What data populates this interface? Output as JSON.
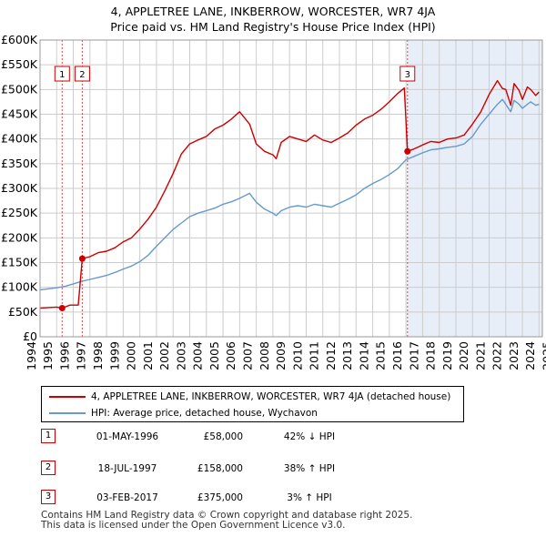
{
  "title_line1": "4, APPLETREE LANE, INKBERROW, WORCESTER, WR7 4JA",
  "title_line2": "Price paid vs. HM Land Registry's House Price Index (HPI)",
  "colors": {
    "price": "#cc0000",
    "hpi": "#6699cc",
    "shade": "#e8eef8",
    "grid": "#cccccc",
    "marker_line": "#cc0000"
  },
  "chart_data": {
    "type": "line",
    "title": "4, APPLETREE LANE, INKBERROW, WORCESTER, WR7 4JA — Price paid vs. HM Land Registry's House Price Index (HPI)",
    "xlabel": "",
    "ylabel": "",
    "xlim": [
      1995.0,
      2025.2
    ],
    "ylim": [
      0,
      600000
    ],
    "y_ticks": [
      {
        "value": 0,
        "label": "£0"
      },
      {
        "value": 50000,
        "label": "£50K"
      },
      {
        "value": 100000,
        "label": "£100K"
      },
      {
        "value": 150000,
        "label": "£150K"
      },
      {
        "value": 200000,
        "label": "£200K"
      },
      {
        "value": 250000,
        "label": "£250K"
      },
      {
        "value": 300000,
        "label": "£300K"
      },
      {
        "value": 350000,
        "label": "£350K"
      },
      {
        "value": 400000,
        "label": "£400K"
      },
      {
        "value": 450000,
        "label": "£450K"
      },
      {
        "value": 500000,
        "label": "£500K"
      },
      {
        "value": 550000,
        "label": "£550K"
      },
      {
        "value": 600000,
        "label": "£600K"
      }
    ],
    "x_ticks": [
      "1994",
      "1995",
      "1996",
      "1997",
      "1998",
      "1999",
      "2000",
      "2001",
      "2002",
      "2003",
      "2004",
      "2005",
      "2006",
      "2007",
      "2008",
      "2009",
      "2010",
      "2011",
      "2012",
      "2013",
      "2014",
      "2015",
      "2016",
      "2017",
      "2018",
      "2019",
      "2020",
      "2021",
      "2022",
      "2023",
      "2024",
      "2025"
    ],
    "series": [
      {
        "name": "4, APPLETREE LANE, INKBERROW, WORCESTER, WR7 4JA (detached house)",
        "color": "#cc0000",
        "x": [
          1995.0,
          1995.5,
          1996.0,
          1996.33,
          1996.8,
          1997.3,
          1997.54,
          1998.0,
          1998.5,
          1999.0,
          1999.5,
          2000.0,
          2000.5,
          2001.0,
          2001.5,
          2002.0,
          2002.5,
          2003.0,
          2003.5,
          2004.0,
          2004.5,
          2005.0,
          2005.5,
          2006.0,
          2006.5,
          2007.0,
          2007.6,
          2008.0,
          2008.5,
          2009.0,
          2009.2,
          2009.5,
          2010.0,
          2010.5,
          2011.0,
          2011.5,
          2012.0,
          2012.5,
          2013.0,
          2013.5,
          2014.0,
          2014.5,
          2015.0,
          2015.5,
          2016.0,
          2016.5,
          2016.9,
          2017.09,
          2017.5,
          2018.0,
          2018.5,
          2019.0,
          2019.5,
          2020.0,
          2020.5,
          2021.0,
          2021.5,
          2022.0,
          2022.5,
          2022.8,
          2023.0,
          2023.3,
          2023.5,
          2023.8,
          2024.0,
          2024.3,
          2024.5,
          2024.8,
          2025.0
        ],
        "values": [
          58000,
          59000,
          60000,
          58000,
          64000,
          64000,
          158000,
          162000,
          170000,
          173000,
          180000,
          192000,
          200000,
          218000,
          238000,
          262000,
          295000,
          330000,
          370000,
          390000,
          398000,
          405000,
          420000,
          428000,
          440000,
          455000,
          430000,
          390000,
          375000,
          368000,
          360000,
          393000,
          405000,
          400000,
          395000,
          408000,
          398000,
          393000,
          402000,
          412000,
          428000,
          440000,
          448000,
          460000,
          475000,
          492000,
          503000,
          375000,
          380000,
          388000,
          395000,
          393000,
          400000,
          402000,
          408000,
          430000,
          455000,
          490000,
          518000,
          502000,
          500000,
          468000,
          512000,
          498000,
          480000,
          505000,
          500000,
          488000,
          495000
        ]
      },
      {
        "name": "HPI: Average price, detached house, Wychavon",
        "color": "#6699cc",
        "x": [
          1995.0,
          1995.5,
          1996.0,
          1996.5,
          1997.0,
          1997.5,
          1998.0,
          1998.5,
          1999.0,
          1999.5,
          2000.0,
          2000.5,
          2001.0,
          2001.5,
          2002.0,
          2002.5,
          2003.0,
          2003.5,
          2004.0,
          2004.5,
          2005.0,
          2005.5,
          2006.0,
          2006.5,
          2007.0,
          2007.6,
          2008.0,
          2008.5,
          2009.0,
          2009.2,
          2009.5,
          2010.0,
          2010.5,
          2011.0,
          2011.5,
          2012.0,
          2012.5,
          2013.0,
          2013.5,
          2014.0,
          2014.5,
          2015.0,
          2015.5,
          2016.0,
          2016.5,
          2017.0,
          2017.5,
          2018.0,
          2018.5,
          2019.0,
          2019.5,
          2020.0,
          2020.5,
          2021.0,
          2021.5,
          2022.0,
          2022.5,
          2022.8,
          2023.0,
          2023.3,
          2023.5,
          2023.8,
          2024.0,
          2024.3,
          2024.5,
          2024.8,
          2025.0
        ],
        "values": [
          95000,
          97000,
          99000,
          102000,
          107000,
          112000,
          116000,
          120000,
          124000,
          130000,
          137000,
          143000,
          152000,
          165000,
          183000,
          200000,
          217000,
          230000,
          243000,
          250000,
          255000,
          260000,
          268000,
          273000,
          280000,
          290000,
          272000,
          258000,
          250000,
          245000,
          255000,
          262000,
          265000,
          262000,
          268000,
          265000,
          262000,
          270000,
          278000,
          287000,
          300000,
          310000,
          318000,
          328000,
          340000,
          358000,
          365000,
          372000,
          378000,
          380000,
          383000,
          385000,
          390000,
          405000,
          430000,
          450000,
          470000,
          480000,
          470000,
          455000,
          478000,
          470000,
          462000,
          470000,
          475000,
          468000,
          470000
        ]
      }
    ],
    "sales": [
      {
        "num": "1",
        "x": 1996.33,
        "price": 58000,
        "date": "01-MAY-1996",
        "price_label": "£58,000",
        "hpi_label": "42% ↓ HPI"
      },
      {
        "num": "2",
        "x": 1997.54,
        "price": 158000,
        "date": "18-JUL-1997",
        "price_label": "£158,000",
        "hpi_label": "38% ↑ HPI"
      },
      {
        "num": "3",
        "x": 2017.09,
        "price": 375000,
        "date": "03-FEB-2017",
        "price_label": "£375,000",
        "hpi_label": "3% ↑ HPI"
      }
    ],
    "shaded_ranges": [
      [
        2017.09,
        2025.2
      ]
    ]
  },
  "legend": {
    "price_label": "4, APPLETREE LANE, INKBERROW, WORCESTER, WR7 4JA (detached house)",
    "hpi_label": "HPI: Average price, detached house, Wychavon"
  },
  "footer": {
    "line1": "Contains HM Land Registry data © Crown copyright and database right 2025.",
    "line2": "This data is licensed under the Open Government Licence v3.0."
  }
}
